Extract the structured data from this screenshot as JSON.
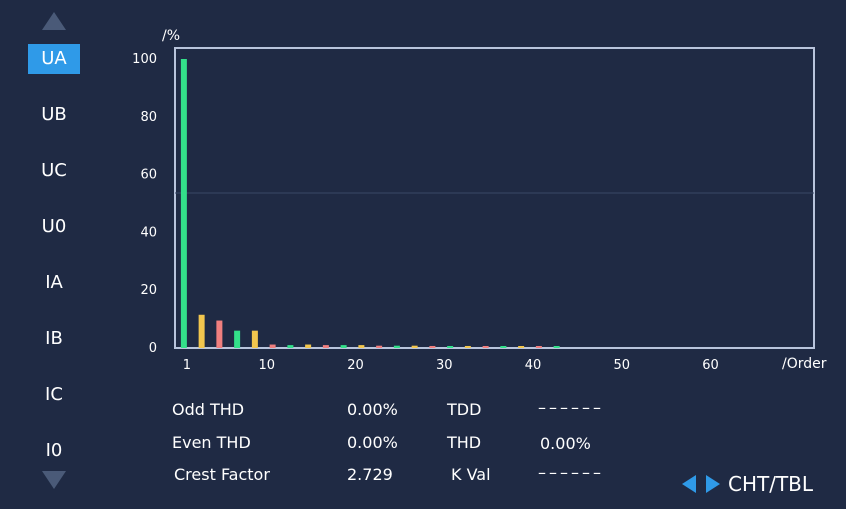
{
  "channels": [
    {
      "label": "UA",
      "active": true
    },
    {
      "label": "UB",
      "active": false
    },
    {
      "label": "UC",
      "active": false
    },
    {
      "label": "U0",
      "active": false
    },
    {
      "label": "IA",
      "active": false
    },
    {
      "label": "IB",
      "active": false
    },
    {
      "label": "IC",
      "active": false
    },
    {
      "label": "I0",
      "active": false
    }
  ],
  "chart_data": {
    "type": "bar",
    "ylabel": "/%",
    "xlabel": "/Order",
    "ylim": [
      0,
      100
    ],
    "xlim": [
      0,
      72
    ],
    "yticks": [
      0,
      20,
      40,
      60,
      80,
      100
    ],
    "xticks": [
      1,
      10,
      20,
      30,
      40,
      50,
      60
    ],
    "series": [
      {
        "values": [
          {
            "x": 1,
            "y": 100,
            "c": "#33e08a"
          },
          {
            "x": 3,
            "y": 11.5,
            "c": "#f2c64e"
          },
          {
            "x": 5,
            "y": 9.5,
            "c": "#f07f7f"
          },
          {
            "x": 7,
            "y": 6,
            "c": "#33e08a"
          },
          {
            "x": 9,
            "y": 6,
            "c": "#f2c64e"
          },
          {
            "x": 11,
            "y": 1.2,
            "c": "#f07f7f"
          },
          {
            "x": 13,
            "y": 1,
            "c": "#33e08a"
          },
          {
            "x": 15,
            "y": 1.2,
            "c": "#f2c64e"
          },
          {
            "x": 17,
            "y": 1,
            "c": "#f07f7f"
          },
          {
            "x": 19,
            "y": 1,
            "c": "#33e08a"
          },
          {
            "x": 21,
            "y": 1,
            "c": "#f2c64e"
          },
          {
            "x": 23,
            "y": 0.8,
            "c": "#f07f7f"
          },
          {
            "x": 25,
            "y": 0.8,
            "c": "#33e08a"
          },
          {
            "x": 27,
            "y": 0.8,
            "c": "#f2c64e"
          },
          {
            "x": 29,
            "y": 0.7,
            "c": "#f07f7f"
          },
          {
            "x": 31,
            "y": 0.7,
            "c": "#33e08a"
          },
          {
            "x": 33,
            "y": 0.7,
            "c": "#f2c64e"
          },
          {
            "x": 35,
            "y": 0.6,
            "c": "#f07f7f"
          },
          {
            "x": 37,
            "y": 0.6,
            "c": "#33e08a"
          },
          {
            "x": 39,
            "y": 0.6,
            "c": "#f2c64e"
          },
          {
            "x": 41,
            "y": 0.6,
            "c": "#f07f7f"
          },
          {
            "x": 43,
            "y": 0.6,
            "c": "#33e08a"
          }
        ]
      }
    ],
    "colors": {
      "odd_green": "#33e08a",
      "yellow": "#f2c64e",
      "red": "#f07f7f",
      "axis": "#b8c4dc"
    }
  },
  "stats": {
    "odd_thd_label": "Odd THD",
    "odd_thd_value": "0.00%",
    "even_thd_label": "Even THD",
    "even_thd_value": "0.00%",
    "crest_factor_label": "Crest Factor",
    "crest_factor_value": "2.729",
    "tdd_label": "TDD",
    "tdd_value": "––––––",
    "thd_label": "THD",
    "thd_value": "0.00%",
    "kval_label": "K Val",
    "kval_value": "––––––"
  },
  "nav": {
    "mode_label": "CHT/TBL"
  },
  "colors": {
    "background": "#1f2a44",
    "accent": "#2f9ae8"
  }
}
